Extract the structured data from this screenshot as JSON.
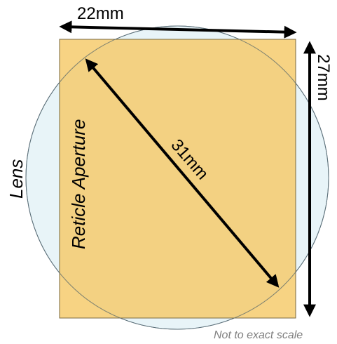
{
  "diagram": {
    "width_label": "22mm",
    "height_label": "27mm",
    "diagonal_label": "31mm",
    "lens_label": "Lens",
    "aperture_label": "Reticle Aperture",
    "note": "Not to exact scale"
  },
  "colors": {
    "lens_fill": "#e8f4f8",
    "lens_stroke": "#5a6e78",
    "aperture_fill": "#f5c864",
    "aperture_stroke": "#7a6a40",
    "arrow": "#000000",
    "note": "#7f7f7f"
  }
}
